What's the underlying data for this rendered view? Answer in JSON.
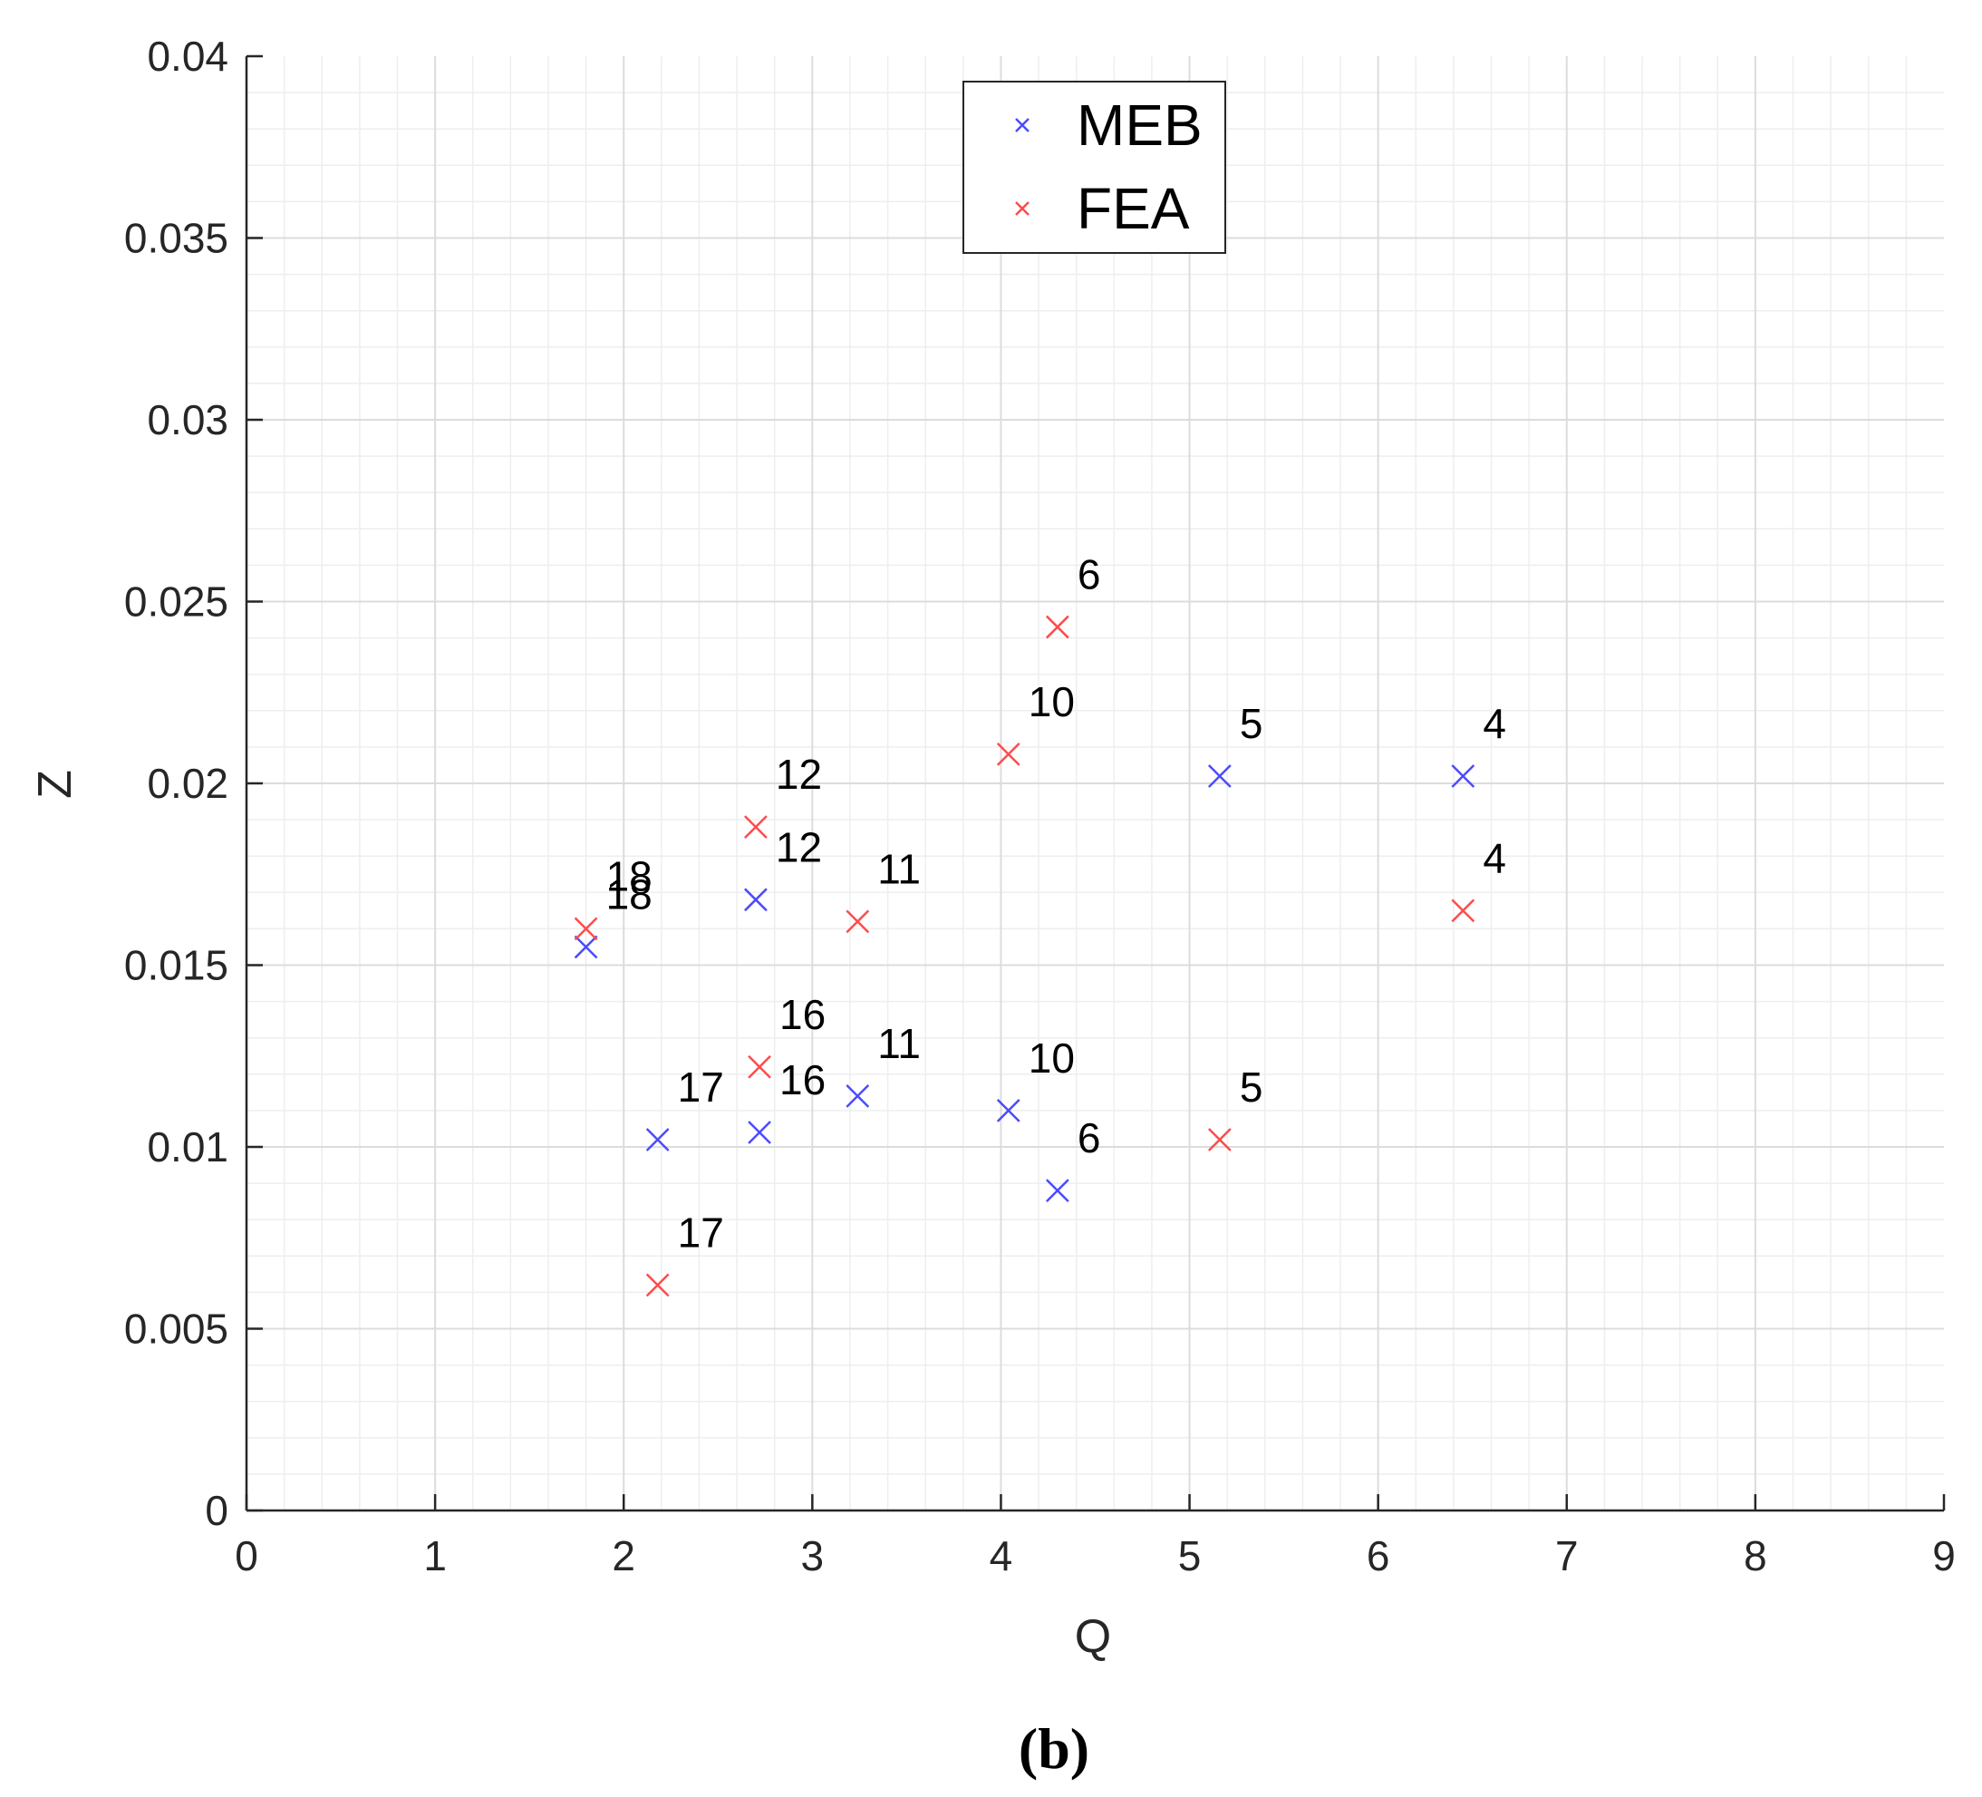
{
  "chart_data": {
    "type": "scatter",
    "title": "",
    "xlabel": "Q",
    "ylabel": "Z",
    "xlim": [
      0,
      9
    ],
    "ylim": [
      0,
      0.04
    ],
    "grid": "major-and-minor",
    "legend_position": "top-center",
    "x_ticks": [
      "0",
      "1",
      "2",
      "3",
      "4",
      "5",
      "6",
      "7",
      "8",
      "9"
    ],
    "y_ticks": [
      "0",
      "0.005",
      "0.01",
      "0.015",
      "0.02",
      "0.025",
      "0.03",
      "0.035",
      "0.04"
    ],
    "series": [
      {
        "name": "MEB",
        "color": "#4b4bff",
        "points": [
          {
            "label": "4",
            "x": 6.45,
            "y": 0.0202
          },
          {
            "label": "5",
            "x": 5.16,
            "y": 0.0202
          },
          {
            "label": "6",
            "x": 4.3,
            "y": 0.0088
          },
          {
            "label": "10",
            "x": 4.04,
            "y": 0.011
          },
          {
            "label": "11",
            "x": 3.24,
            "y": 0.0114
          },
          {
            "label": "12",
            "x": 2.7,
            "y": 0.0168
          },
          {
            "label": "16",
            "x": 2.72,
            "y": 0.0104
          },
          {
            "label": "17",
            "x": 2.18,
            "y": 0.0102
          },
          {
            "label": "18",
            "x": 1.8,
            "y": 0.0155
          }
        ]
      },
      {
        "name": "FEA",
        "color": "#ff4b4b",
        "points": [
          {
            "label": "4",
            "x": 6.45,
            "y": 0.0165
          },
          {
            "label": "5",
            "x": 5.16,
            "y": 0.0102
          },
          {
            "label": "6",
            "x": 4.3,
            "y": 0.0243
          },
          {
            "label": "10",
            "x": 4.04,
            "y": 0.0208
          },
          {
            "label": "11",
            "x": 3.24,
            "y": 0.0162
          },
          {
            "label": "12",
            "x": 2.7,
            "y": 0.0188
          },
          {
            "label": "16",
            "x": 2.72,
            "y": 0.0122
          },
          {
            "label": "17",
            "x": 2.18,
            "y": 0.0062
          },
          {
            "label": "18",
            "x": 1.8,
            "y": 0.016
          }
        ]
      }
    ]
  },
  "caption": "(b)"
}
